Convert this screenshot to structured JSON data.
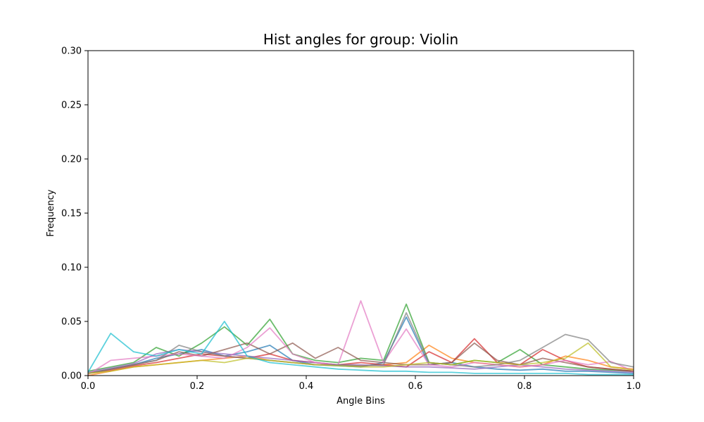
{
  "chart_data": {
    "type": "line",
    "title": "Hist angles for group: Violin",
    "xlabel": "Angle Bins",
    "ylabel": "Frequency",
    "xlim": [
      0.0,
      1.0
    ],
    "ylim": [
      0.0,
      0.3
    ],
    "grid": false,
    "legend": "none",
    "x_ticks": [
      "0.0",
      "0.2",
      "0.4",
      "0.6",
      "0.8",
      "1.0"
    ],
    "y_ticks": [
      "0.00",
      "0.05",
      "0.10",
      "0.15",
      "0.20",
      "0.25",
      "0.30"
    ],
    "x": [
      0.0,
      0.0417,
      0.0833,
      0.125,
      0.1667,
      0.2083,
      0.25,
      0.2917,
      0.3333,
      0.375,
      0.4167,
      0.4583,
      0.5,
      0.5417,
      0.5833,
      0.625,
      0.6667,
      0.7083,
      0.75,
      0.7917,
      0.8333,
      0.875,
      0.9167,
      0.9583,
      1.0
    ],
    "series": [
      {
        "color": "#1f77b4",
        "values": [
          0.002,
          0.006,
          0.01,
          0.016,
          0.02,
          0.024,
          0.018,
          0.022,
          0.028,
          0.014,
          0.01,
          0.009,
          0.008,
          0.012,
          0.054,
          0.01,
          0.012,
          0.008,
          0.006,
          0.005,
          0.006,
          0.004,
          0.004,
          0.003,
          0.002
        ]
      },
      {
        "color": "#ff7f0e",
        "values": [
          0.0,
          0.004,
          0.008,
          0.01,
          0.012,
          0.014,
          0.016,
          0.018,
          0.014,
          0.012,
          0.01,
          0.01,
          0.009,
          0.01,
          0.012,
          0.028,
          0.016,
          0.012,
          0.01,
          0.008,
          0.01,
          0.018,
          0.014,
          0.008,
          0.006
        ]
      },
      {
        "color": "#2ca02c",
        "values": [
          0.004,
          0.008,
          0.012,
          0.026,
          0.018,
          0.03,
          0.045,
          0.028,
          0.052,
          0.02,
          0.014,
          0.012,
          0.016,
          0.014,
          0.066,
          0.012,
          0.01,
          0.014,
          0.012,
          0.024,
          0.01,
          0.008,
          0.006,
          0.005,
          0.004
        ]
      },
      {
        "color": "#d62728",
        "values": [
          0.002,
          0.005,
          0.009,
          0.012,
          0.016,
          0.02,
          0.018,
          0.016,
          0.02,
          0.014,
          0.012,
          0.01,
          0.012,
          0.01,
          0.008,
          0.022,
          0.012,
          0.034,
          0.012,
          0.01,
          0.024,
          0.014,
          0.008,
          0.006,
          0.004
        ]
      },
      {
        "color": "#9467bd",
        "values": [
          0.003,
          0.007,
          0.011,
          0.02,
          0.024,
          0.022,
          0.02,
          0.018,
          0.016,
          0.014,
          0.012,
          0.01,
          0.01,
          0.009,
          0.008,
          0.008,
          0.007,
          0.006,
          0.008,
          0.01,
          0.008,
          0.006,
          0.005,
          0.004,
          0.003
        ]
      },
      {
        "color": "#8c564b",
        "values": [
          0.002,
          0.006,
          0.01,
          0.014,
          0.022,
          0.018,
          0.024,
          0.03,
          0.02,
          0.03,
          0.016,
          0.026,
          0.014,
          0.012,
          0.01,
          0.01,
          0.012,
          0.03,
          0.014,
          0.01,
          0.016,
          0.012,
          0.008,
          0.006,
          0.004
        ]
      },
      {
        "color": "#e377c2",
        "values": [
          0.001,
          0.014,
          0.016,
          0.018,
          0.02,
          0.018,
          0.016,
          0.026,
          0.044,
          0.02,
          0.012,
          0.01,
          0.069,
          0.012,
          0.043,
          0.01,
          0.008,
          0.012,
          0.01,
          0.008,
          0.01,
          0.014,
          0.01,
          0.013,
          0.004
        ]
      },
      {
        "color": "#7f7f7f",
        "values": [
          0.002,
          0.006,
          0.01,
          0.014,
          0.028,
          0.022,
          0.018,
          0.016,
          0.014,
          0.012,
          0.01,
          0.01,
          0.009,
          0.01,
          0.058,
          0.012,
          0.01,
          0.008,
          0.01,
          0.014,
          0.026,
          0.038,
          0.033,
          0.012,
          0.008
        ]
      },
      {
        "color": "#bcbd22",
        "values": [
          0.002,
          0.004,
          0.008,
          0.01,
          0.012,
          0.014,
          0.012,
          0.016,
          0.014,
          0.012,
          0.01,
          0.009,
          0.008,
          0.008,
          0.01,
          0.012,
          0.01,
          0.014,
          0.012,
          0.01,
          0.012,
          0.016,
          0.03,
          0.008,
          0.005
        ]
      },
      {
        "color": "#17becf",
        "values": [
          0.003,
          0.039,
          0.022,
          0.018,
          0.024,
          0.02,
          0.05,
          0.018,
          0.012,
          0.01,
          0.008,
          0.006,
          0.005,
          0.004,
          0.004,
          0.003,
          0.003,
          0.002,
          0.002,
          0.002,
          0.002,
          0.002,
          0.001,
          0.001,
          0.001
        ]
      }
    ]
  }
}
